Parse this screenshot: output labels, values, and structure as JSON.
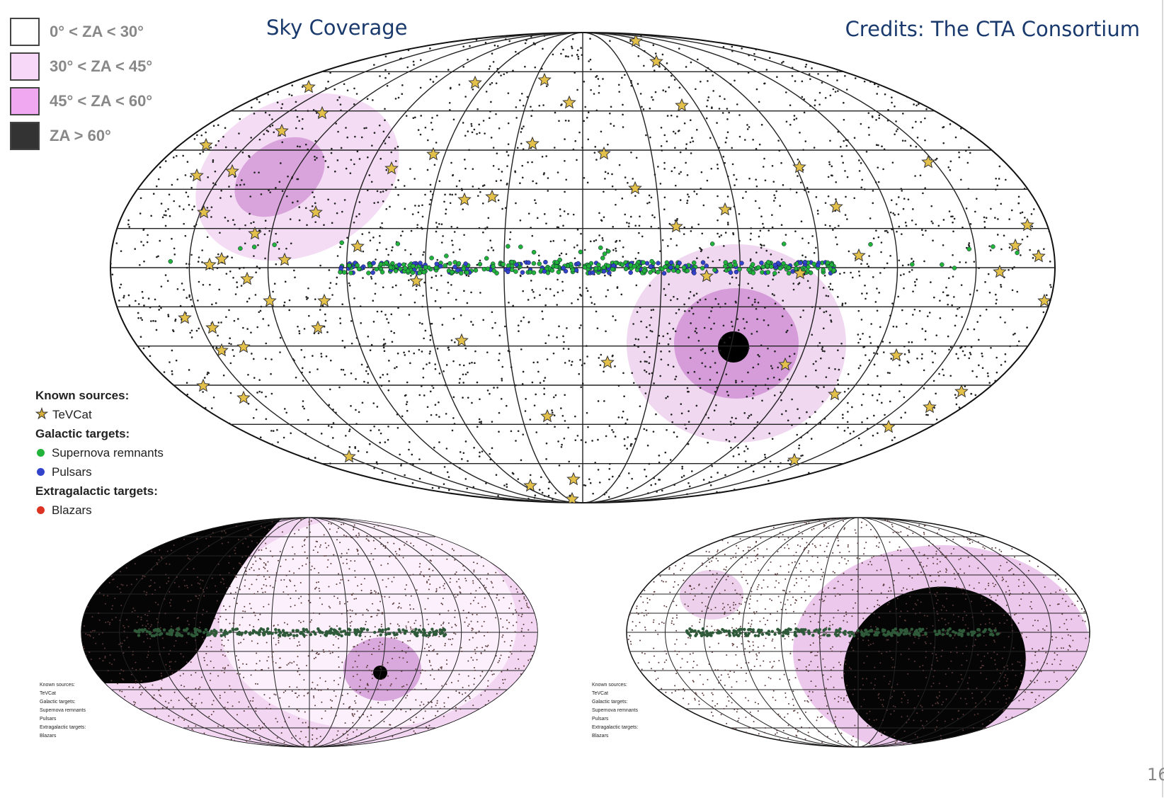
{
  "header": {
    "title": "Sky Coverage",
    "credits": "Credits: The CTA Consortium"
  },
  "page_number": "16",
  "za_legend": [
    {
      "label": "0° < ZA < 30°",
      "color": "#ffffff"
    },
    {
      "label": "30° < ZA < 45°",
      "color": "#f8d8f8"
    },
    {
      "label": "45° < ZA < 60°",
      "color": "#f0a8f0"
    },
    {
      "label": "ZA > 60°",
      "color": "#333333"
    }
  ],
  "source_legend": {
    "known_heading": "Known sources:",
    "tevcat": "TeVCat",
    "galactic_heading": "Galactic targets:",
    "snr": "Supernova remnants",
    "pulsars": "Pulsars",
    "extragalactic_heading": "Extragalactic targets:",
    "blazars": "Blazars",
    "colors": {
      "snr": "#22b33a",
      "pulsars": "#3344cc",
      "blazars": "#dd3322",
      "tevcat": "#d9b13a"
    }
  },
  "mini_legend": {
    "known_heading": "Known sources:",
    "tevcat": "TeVCat",
    "galactic_heading": "Galactic targets:",
    "snr": "Supernova remnants",
    "pulsars": "Pulsars",
    "extragalactic_heading": "Extragalactic targets:",
    "blazars": "Blazars"
  }
}
